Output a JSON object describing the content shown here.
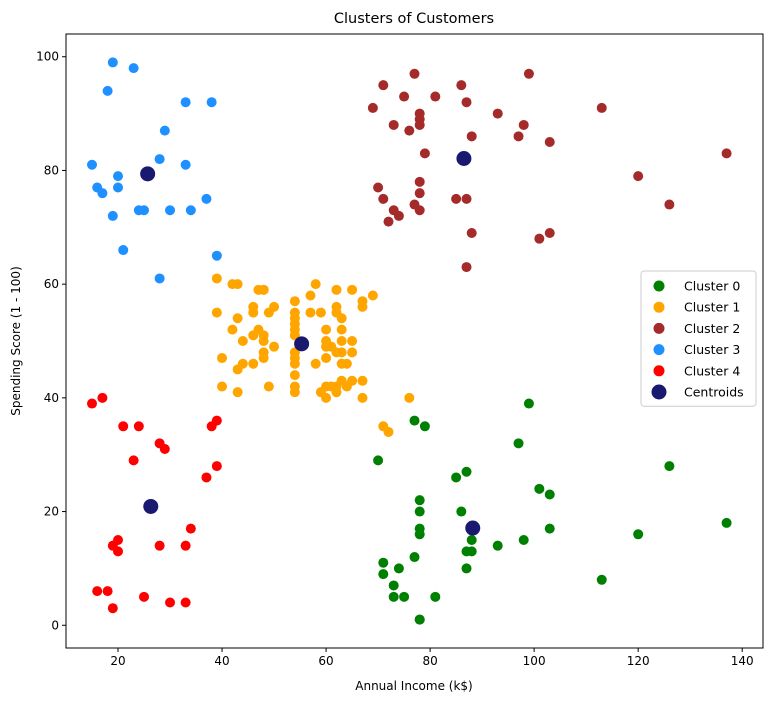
{
  "chart_data": {
    "type": "scatter",
    "title": "Clusters of Customers",
    "xlabel": "Annual Income (k$)",
    "ylabel": "Spending Score (1 - 100)",
    "xlim": [
      10,
      144
    ],
    "ylim": [
      -4,
      104
    ],
    "xticks": [
      20,
      40,
      60,
      80,
      100,
      120,
      140
    ],
    "yticks": [
      0,
      20,
      40,
      60,
      80,
      100
    ],
    "grid": false,
    "legend_position": "center-right",
    "series": [
      {
        "name": "Cluster 0",
        "color": "#008000",
        "points": [
          [
            70,
            29
          ],
          [
            71,
            11
          ],
          [
            71,
            9
          ],
          [
            73,
            5
          ],
          [
            73,
            7
          ],
          [
            74,
            10
          ],
          [
            75,
            5
          ],
          [
            77,
            36
          ],
          [
            77,
            12
          ],
          [
            78,
            22
          ],
          [
            78,
            17
          ],
          [
            78,
            20
          ],
          [
            78,
            16
          ],
          [
            78,
            1
          ],
          [
            78,
            1
          ],
          [
            79,
            35
          ],
          [
            81,
            5
          ],
          [
            85,
            26
          ],
          [
            86,
            20
          ],
          [
            87,
            27
          ],
          [
            87,
            13
          ],
          [
            87,
            10
          ],
          [
            88,
            13
          ],
          [
            88,
            15
          ],
          [
            93,
            14
          ],
          [
            97,
            32
          ],
          [
            98,
            15
          ],
          [
            99,
            39
          ],
          [
            101,
            24
          ],
          [
            103,
            17
          ],
          [
            103,
            23
          ],
          [
            113,
            8
          ],
          [
            120,
            16
          ],
          [
            126,
            28
          ],
          [
            137,
            18
          ]
        ]
      },
      {
        "name": "Cluster 1",
        "color": "#FFA500",
        "points": [
          [
            39,
            61
          ],
          [
            39,
            55
          ],
          [
            40,
            47
          ],
          [
            40,
            42
          ],
          [
            42,
            52
          ],
          [
            42,
            60
          ],
          [
            43,
            54
          ],
          [
            43,
            60
          ],
          [
            43,
            45
          ],
          [
            43,
            41
          ],
          [
            44,
            50
          ],
          [
            44,
            46
          ],
          [
            46,
            51
          ],
          [
            46,
            46
          ],
          [
            46,
            56
          ],
          [
            46,
            55
          ],
          [
            47,
            52
          ],
          [
            47,
            59
          ],
          [
            48,
            51
          ],
          [
            48,
            59
          ],
          [
            48,
            50
          ],
          [
            48,
            48
          ],
          [
            48,
            59
          ],
          [
            48,
            47
          ],
          [
            49,
            55
          ],
          [
            49,
            42
          ],
          [
            50,
            49
          ],
          [
            50,
            56
          ],
          [
            54,
            47
          ],
          [
            54,
            54
          ],
          [
            54,
            53
          ],
          [
            54,
            48
          ],
          [
            54,
            52
          ],
          [
            54,
            42
          ],
          [
            54,
            51
          ],
          [
            54,
            55
          ],
          [
            54,
            41
          ],
          [
            54,
            44
          ],
          [
            54,
            57
          ],
          [
            54,
            46
          ],
          [
            57,
            58
          ],
          [
            57,
            55
          ],
          [
            58,
            60
          ],
          [
            58,
            46
          ],
          [
            59,
            55
          ],
          [
            59,
            41
          ],
          [
            60,
            49
          ],
          [
            60,
            40
          ],
          [
            60,
            42
          ],
          [
            60,
            52
          ],
          [
            60,
            47
          ],
          [
            60,
            50
          ],
          [
            61,
            42
          ],
          [
            61,
            49
          ],
          [
            62,
            41
          ],
          [
            62,
            48
          ],
          [
            62,
            59
          ],
          [
            62,
            55
          ],
          [
            62,
            56
          ],
          [
            62,
            42
          ],
          [
            63,
            50
          ],
          [
            63,
            46
          ],
          [
            63,
            43
          ],
          [
            63,
            48
          ],
          [
            63,
            52
          ],
          [
            63,
            54
          ],
          [
            64,
            42
          ],
          [
            64,
            46
          ],
          [
            65,
            48
          ],
          [
            65,
            50
          ],
          [
            65,
            43
          ],
          [
            65,
            59
          ],
          [
            67,
            43
          ],
          [
            67,
            57
          ],
          [
            67,
            56
          ],
          [
            67,
            40
          ],
          [
            69,
            58
          ],
          [
            71,
            35
          ],
          [
            72,
            34
          ],
          [
            76,
            40
          ]
        ]
      },
      {
        "name": "Cluster 2",
        "color": "#A52A2A",
        "points": [
          [
            69,
            91
          ],
          [
            70,
            77
          ],
          [
            71,
            95
          ],
          [
            71,
            75
          ],
          [
            72,
            71
          ],
          [
            73,
            88
          ],
          [
            73,
            73
          ],
          [
            74,
            72
          ],
          [
            75,
            93
          ],
          [
            76,
            87
          ],
          [
            77,
            97
          ],
          [
            77,
            74
          ],
          [
            78,
            90
          ],
          [
            78,
            88
          ],
          [
            78,
            76
          ],
          [
            78,
            89
          ],
          [
            78,
            78
          ],
          [
            78,
            73
          ],
          [
            79,
            83
          ],
          [
            81,
            93
          ],
          [
            85,
            75
          ],
          [
            86,
            95
          ],
          [
            87,
            63
          ],
          [
            87,
            75
          ],
          [
            87,
            92
          ],
          [
            88,
            86
          ],
          [
            88,
            69
          ],
          [
            93,
            90
          ],
          [
            97,
            86
          ],
          [
            98,
            88
          ],
          [
            99,
            97
          ],
          [
            101,
            68
          ],
          [
            103,
            85
          ],
          [
            103,
            69
          ],
          [
            113,
            91
          ],
          [
            120,
            79
          ],
          [
            126,
            74
          ],
          [
            137,
            83
          ]
        ]
      },
      {
        "name": "Cluster 3",
        "color": "#1E90FF",
        "points": [
          [
            15,
            81
          ],
          [
            16,
            77
          ],
          [
            17,
            76
          ],
          [
            18,
            94
          ],
          [
            19,
            72
          ],
          [
            19,
            99
          ],
          [
            20,
            77
          ],
          [
            20,
            79
          ],
          [
            21,
            66
          ],
          [
            23,
            98
          ],
          [
            24,
            73
          ],
          [
            25,
            73
          ],
          [
            28,
            82
          ],
          [
            28,
            61
          ],
          [
            29,
            87
          ],
          [
            30,
            73
          ],
          [
            33,
            92
          ],
          [
            33,
            81
          ],
          [
            34,
            73
          ],
          [
            37,
            75
          ],
          [
            38,
            92
          ],
          [
            39,
            65
          ]
        ]
      },
      {
        "name": "Cluster 4",
        "color": "#FF0000",
        "points": [
          [
            15,
            39
          ],
          [
            16,
            6
          ],
          [
            17,
            40
          ],
          [
            18,
            6
          ],
          [
            19,
            3
          ],
          [
            19,
            14
          ],
          [
            20,
            15
          ],
          [
            20,
            13
          ],
          [
            21,
            35
          ],
          [
            23,
            29
          ],
          [
            24,
            35
          ],
          [
            25,
            5
          ],
          [
            28,
            14
          ],
          [
            28,
            32
          ],
          [
            29,
            31
          ],
          [
            30,
            4
          ],
          [
            33,
            4
          ],
          [
            33,
            14
          ],
          [
            34,
            17
          ],
          [
            37,
            26
          ],
          [
            38,
            35
          ],
          [
            39,
            36
          ],
          [
            39,
            28
          ]
        ]
      },
      {
        "name": "Centroids",
        "color": "#191970",
        "points": [
          [
            88.2,
            17.1
          ],
          [
            55.3,
            49.5
          ],
          [
            86.5,
            82.1
          ],
          [
            25.7,
            79.4
          ],
          [
            26.3,
            20.9
          ]
        ]
      }
    ]
  }
}
